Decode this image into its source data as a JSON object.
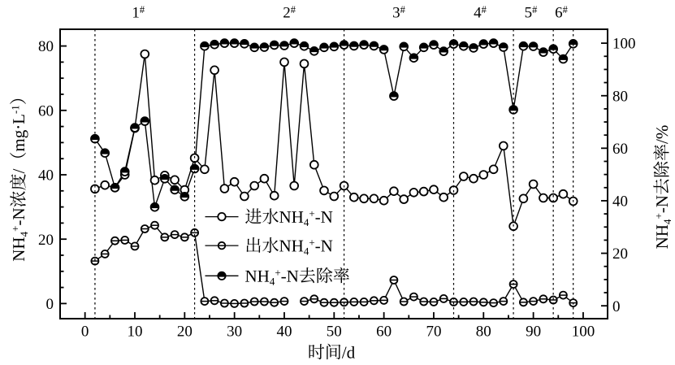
{
  "figure": {
    "background": "#ffffff",
    "ink_color": "#000000",
    "description": "line chart of NH4+-N concentration and removal rate vs time"
  },
  "chart_data": {
    "type": "line",
    "title": "",
    "xlabel": "时间/d",
    "ylabel_left": "NH₄⁺-N浓度/（mg·L⁻¹）",
    "ylabel_right": "NH₄⁺-N去除率/%",
    "xlim": [
      -5,
      104.9
    ],
    "ylim_left": [
      -4.7,
      85.2
    ],
    "ylim_right": [
      -4.9,
      105.3
    ],
    "grid": false,
    "legend_position": "inside-center-left",
    "x_ticks_major": [
      0,
      10,
      20,
      30,
      40,
      50,
      60,
      70,
      80,
      90,
      100
    ],
    "x_ticks_minor": [
      5,
      15,
      25,
      35,
      45,
      55,
      65,
      75,
      85,
      95
    ],
    "y_left_ticks_major": [
      0,
      20,
      40,
      60,
      80
    ],
    "y_left_ticks_minor": [
      5,
      10,
      15,
      25,
      30,
      35,
      45,
      50,
      55,
      65,
      70,
      75
    ],
    "y_right_ticks_major": [
      0,
      20,
      40,
      60,
      80,
      100
    ],
    "y_right_ticks_minor": [
      5,
      10,
      15,
      25,
      30,
      35,
      45,
      50,
      55,
      65,
      70,
      75,
      85,
      90,
      95
    ],
    "x": [
      2,
      4,
      6,
      8,
      10,
      12,
      14,
      16,
      18,
      20,
      22,
      24,
      26,
      28,
      30,
      32,
      34,
      36,
      38,
      40,
      42,
      44,
      46,
      48,
      50,
      52,
      54,
      56,
      58,
      60,
      62,
      64,
      66,
      68,
      70,
      72,
      74,
      76,
      78,
      80,
      82,
      84,
      86,
      88,
      90,
      92,
      94,
      96,
      98
    ],
    "series": [
      {
        "name": "进水NH₄⁺-N",
        "axis": "left",
        "marker": "open-circle",
        "color": "#000000",
        "values": [
          35.6,
          36.8,
          36.0,
          40.0,
          54.5,
          77.5,
          38.3,
          39.8,
          38.4,
          35.3,
          45.2,
          41.7,
          72.5,
          35.7,
          37.8,
          33.3,
          36.6,
          38.8,
          33.5,
          75.0,
          36.6,
          74.5,
          43.1,
          35.1,
          33.3,
          36.6,
          33.0,
          32.6,
          32.6,
          32.0,
          34.9,
          32.4,
          34.5,
          34.8,
          35.4,
          33.0,
          35.2,
          39.5,
          38.8,
          40.0,
          41.7,
          49.0,
          24.0,
          32.6,
          37.1,
          32.8,
          32.8,
          34.0,
          31.8
        ]
      },
      {
        "name": "出水NH₄⁺-N",
        "axis": "left",
        "marker": "circle-hline",
        "color": "#000000",
        "values": [
          13.2,
          15.4,
          19.5,
          19.7,
          17.8,
          23.2,
          24.3,
          20.6,
          21.4,
          20.6,
          22.0,
          0.7,
          0.9,
          0.1,
          0.0,
          0.1,
          0.6,
          0.6,
          0.3,
          0.7,
          null,
          0.7,
          1.4,
          0.3,
          0.3,
          0.4,
          0.5,
          0.5,
          0.9,
          1.0,
          7.3,
          0.6,
          2.1,
          0.6,
          0.5,
          1.5,
          0.5,
          0.5,
          0.6,
          0.4,
          0.2,
          0.7,
          6.0,
          0.4,
          0.7,
          1.4,
          1.1,
          2.6,
          0.2
        ]
      },
      {
        "name": "NH₄⁺-N去除率",
        "axis": "right",
        "marker": "circle-half-top",
        "color": "#000000",
        "values": [
          63.6,
          58.2,
          45.0,
          51.1,
          67.8,
          70.3,
          37.6,
          48.4,
          44.2,
          41.6,
          52.2,
          98.9,
          99.5,
          100,
          100,
          99.8,
          98.4,
          98.5,
          99.3,
          99.1,
          100,
          98.9,
          97.0,
          98.4,
          98.7,
          99.4,
          99.0,
          99.4,
          99.0,
          97.6,
          79.9,
          98.7,
          94.4,
          98.4,
          99.4,
          96.9,
          99.7,
          98.9,
          98.2,
          99.7,
          100,
          98.5,
          74.7,
          98.9,
          98.8,
          96.6,
          97.8,
          94.0,
          99.8
        ]
      }
    ],
    "phases": {
      "boundary_days": [
        2,
        22,
        52,
        74,
        86,
        94,
        98
      ],
      "labels": [
        {
          "text": "1#",
          "day": 10.7
        },
        {
          "text": "2#",
          "day": 41.0
        },
        {
          "text": "3#",
          "day": 63.0
        },
        {
          "text": "4#",
          "day": 79.3
        },
        {
          "text": "5#",
          "day": 89.5
        },
        {
          "text": "6#",
          "day": 95.6
        }
      ]
    }
  }
}
